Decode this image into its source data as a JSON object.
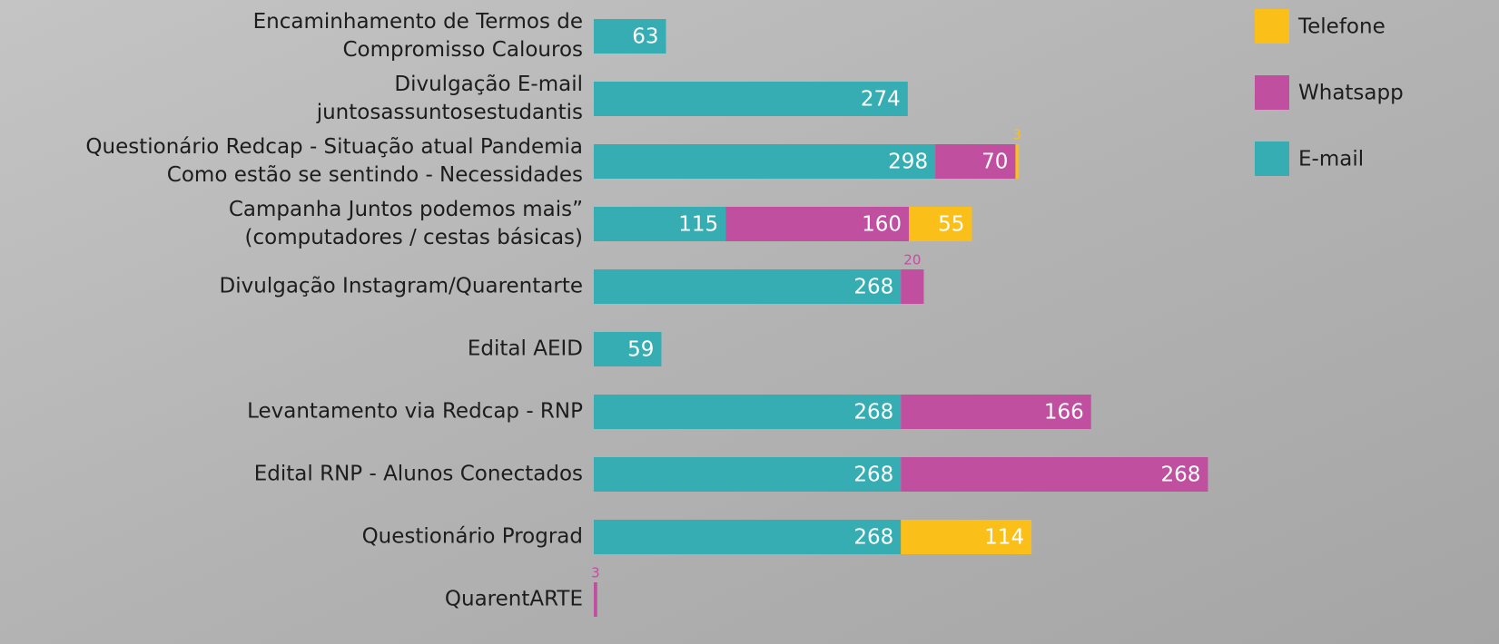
{
  "chart_data": {
    "type": "stacked-bar-horizontal",
    "categories": [
      [
        "Encaminhamento de Termos de",
        "Compromisso Calouros"
      ],
      [
        "Divulgação E-mail",
        "juntosassuntosestudantis"
      ],
      [
        "Questionário Redcap - Situação atual Pandemia",
        "Como estão se sentindo - Necessidades"
      ],
      [
        "Campanha Juntos podemos mais”",
        "(computadores / cestas básicas)"
      ],
      [
        "Divulgação Instagram/Quarentarte"
      ],
      [
        "Edital AEID"
      ],
      [
        "Levantamento via Redcap - RNP"
      ],
      [
        "Edital RNP - Alunos Conectados"
      ],
      [
        "Questionário Prograd"
      ],
      [
        "QuarentARTE"
      ]
    ],
    "series": [
      {
        "name": "E-mail",
        "color": "#35adb3",
        "values": [
          63,
          274,
          298,
          115,
          268,
          59,
          268,
          268,
          268,
          null
        ]
      },
      {
        "name": "Whatsapp",
        "color": "#c04f9f",
        "values": [
          null,
          null,
          70,
          160,
          20,
          null,
          166,
          268,
          null,
          3
        ]
      },
      {
        "name": "Telefone",
        "color": "#fbbf1a",
        "values": [
          null,
          null,
          3,
          55,
          null,
          null,
          null,
          null,
          114,
          null
        ]
      }
    ],
    "xlim": [
      0,
      790
    ]
  }
}
